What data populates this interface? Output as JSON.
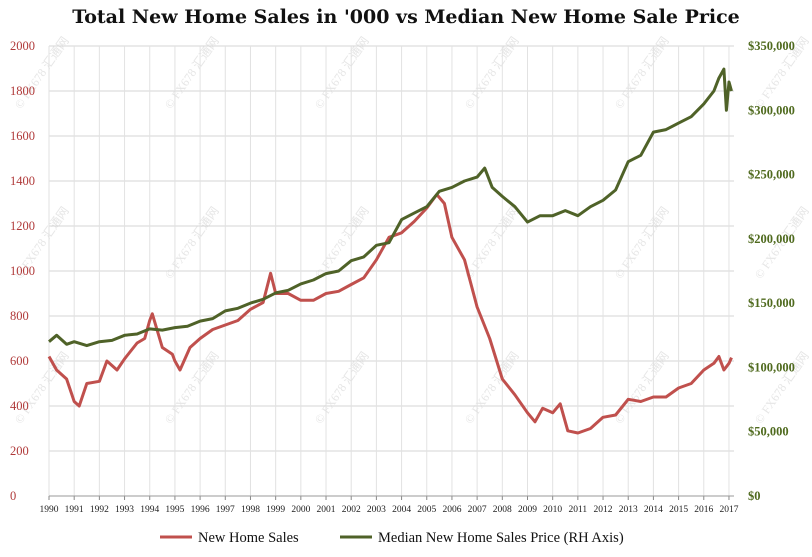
{
  "chart_data": {
    "type": "line",
    "title": "Total New Home Sales in '000 vs Median New Home Sale Price",
    "x_ticks": [
      "1990",
      "1991",
      "1992",
      "1993",
      "1994",
      "1995",
      "1996",
      "1997",
      "1998",
      "1999",
      "2000",
      "2001",
      "2002",
      "2003",
      "2004",
      "2005",
      "2006",
      "2007",
      "2008",
      "2009",
      "2010",
      "2011",
      "2012",
      "2013",
      "2014",
      "2015",
      "2016",
      "2017"
    ],
    "y_left": {
      "ticks": [
        "0",
        "200",
        "400",
        "600",
        "800",
        "1000",
        "1200",
        "1400",
        "1600",
        "1800",
        "2000"
      ],
      "range": [
        0,
        2000
      ]
    },
    "y_right": {
      "ticks": [
        "$0",
        "$50,000",
        "$100,000",
        "$150,000",
        "$200,000",
        "$250,000",
        "$300,000",
        "$350,000"
      ],
      "range": [
        0,
        350000
      ]
    },
    "x_range": [
      1990,
      2017.2
    ],
    "grid": true,
    "legend_position": "bottom",
    "series": [
      {
        "name": "New Home Sales",
        "axis": "left",
        "color": "#c0504d",
        "points": [
          [
            1990.0,
            620
          ],
          [
            1990.3,
            560
          ],
          [
            1990.7,
            520
          ],
          [
            1991.0,
            420
          ],
          [
            1991.2,
            400
          ],
          [
            1991.5,
            500
          ],
          [
            1992.0,
            510
          ],
          [
            1992.3,
            600
          ],
          [
            1992.7,
            560
          ],
          [
            1993.0,
            610
          ],
          [
            1993.5,
            680
          ],
          [
            1993.8,
            700
          ],
          [
            1994.0,
            780
          ],
          [
            1994.1,
            810
          ],
          [
            1994.5,
            660
          ],
          [
            1994.9,
            630
          ],
          [
            1995.0,
            600
          ],
          [
            1995.2,
            560
          ],
          [
            1995.6,
            660
          ],
          [
            1996.0,
            700
          ],
          [
            1996.5,
            740
          ],
          [
            1997.0,
            760
          ],
          [
            1997.5,
            780
          ],
          [
            1998.0,
            830
          ],
          [
            1998.5,
            860
          ],
          [
            1998.8,
            990
          ],
          [
            1999.0,
            900
          ],
          [
            1999.5,
            900
          ],
          [
            2000.0,
            870
          ],
          [
            2000.5,
            870
          ],
          [
            2001.0,
            900
          ],
          [
            2001.5,
            910
          ],
          [
            2002.0,
            940
          ],
          [
            2002.5,
            970
          ],
          [
            2003.0,
            1050
          ],
          [
            2003.5,
            1150
          ],
          [
            2004.0,
            1170
          ],
          [
            2004.5,
            1220
          ],
          [
            2005.0,
            1280
          ],
          [
            2005.4,
            1340
          ],
          [
            2005.7,
            1300
          ],
          [
            2006.0,
            1150
          ],
          [
            2006.5,
            1050
          ],
          [
            2007.0,
            840
          ],
          [
            2007.5,
            700
          ],
          [
            2008.0,
            520
          ],
          [
            2008.5,
            450
          ],
          [
            2009.0,
            370
          ],
          [
            2009.3,
            330
          ],
          [
            2009.6,
            390
          ],
          [
            2010.0,
            370
          ],
          [
            2010.3,
            410
          ],
          [
            2010.6,
            290
          ],
          [
            2011.0,
            280
          ],
          [
            2011.5,
            300
          ],
          [
            2012.0,
            350
          ],
          [
            2012.5,
            360
          ],
          [
            2013.0,
            430
          ],
          [
            2013.5,
            420
          ],
          [
            2014.0,
            440
          ],
          [
            2014.5,
            440
          ],
          [
            2015.0,
            480
          ],
          [
            2015.5,
            500
          ],
          [
            2016.0,
            560
          ],
          [
            2016.4,
            590
          ],
          [
            2016.6,
            620
          ],
          [
            2016.8,
            560
          ],
          [
            2017.0,
            590
          ],
          [
            2017.1,
            615
          ]
        ]
      },
      {
        "name": "Median New Home Sales Price (RH Axis)",
        "axis": "right",
        "color": "#4f6228",
        "points": [
          [
            1990.0,
            120000
          ],
          [
            1990.3,
            125000
          ],
          [
            1990.7,
            118000
          ],
          [
            1991.0,
            120000
          ],
          [
            1991.5,
            117000
          ],
          [
            1992.0,
            120000
          ],
          [
            1992.5,
            121000
          ],
          [
            1993.0,
            125000
          ],
          [
            1993.5,
            126000
          ],
          [
            1994.0,
            130000
          ],
          [
            1994.5,
            129000
          ],
          [
            1995.0,
            131000
          ],
          [
            1995.5,
            132000
          ],
          [
            1996.0,
            136000
          ],
          [
            1996.5,
            138000
          ],
          [
            1997.0,
            144000
          ],
          [
            1997.5,
            146000
          ],
          [
            1998.0,
            150000
          ],
          [
            1998.5,
            153000
          ],
          [
            1999.0,
            158000
          ],
          [
            1999.5,
            160000
          ],
          [
            2000.0,
            165000
          ],
          [
            2000.5,
            168000
          ],
          [
            2001.0,
            173000
          ],
          [
            2001.5,
            175000
          ],
          [
            2002.0,
            183000
          ],
          [
            2002.5,
            186000
          ],
          [
            2003.0,
            195000
          ],
          [
            2003.5,
            197000
          ],
          [
            2004.0,
            215000
          ],
          [
            2004.5,
            220000
          ],
          [
            2005.0,
            225000
          ],
          [
            2005.5,
            237000
          ],
          [
            2006.0,
            240000
          ],
          [
            2006.5,
            245000
          ],
          [
            2007.0,
            248000
          ],
          [
            2007.3,
            255000
          ],
          [
            2007.6,
            240000
          ],
          [
            2008.0,
            233000
          ],
          [
            2008.5,
            225000
          ],
          [
            2009.0,
            213000
          ],
          [
            2009.5,
            218000
          ],
          [
            2010.0,
            218000
          ],
          [
            2010.5,
            222000
          ],
          [
            2011.0,
            218000
          ],
          [
            2011.5,
            225000
          ],
          [
            2012.0,
            230000
          ],
          [
            2012.5,
            238000
          ],
          [
            2013.0,
            260000
          ],
          [
            2013.5,
            265000
          ],
          [
            2014.0,
            283000
          ],
          [
            2014.5,
            285000
          ],
          [
            2015.0,
            290000
          ],
          [
            2015.5,
            295000
          ],
          [
            2016.0,
            305000
          ],
          [
            2016.4,
            315000
          ],
          [
            2016.6,
            325000
          ],
          [
            2016.8,
            332000
          ],
          [
            2016.9,
            300000
          ],
          [
            2017.0,
            322000
          ],
          [
            2017.1,
            315000
          ]
        ]
      }
    ]
  },
  "legend": [
    {
      "label": "New Home Sales",
      "color": "#c0504d"
    },
    {
      "label": "Median New Home Sales Price (RH Axis)",
      "color": "#4f6228"
    }
  ],
  "watermark": "FX678 汇通网"
}
